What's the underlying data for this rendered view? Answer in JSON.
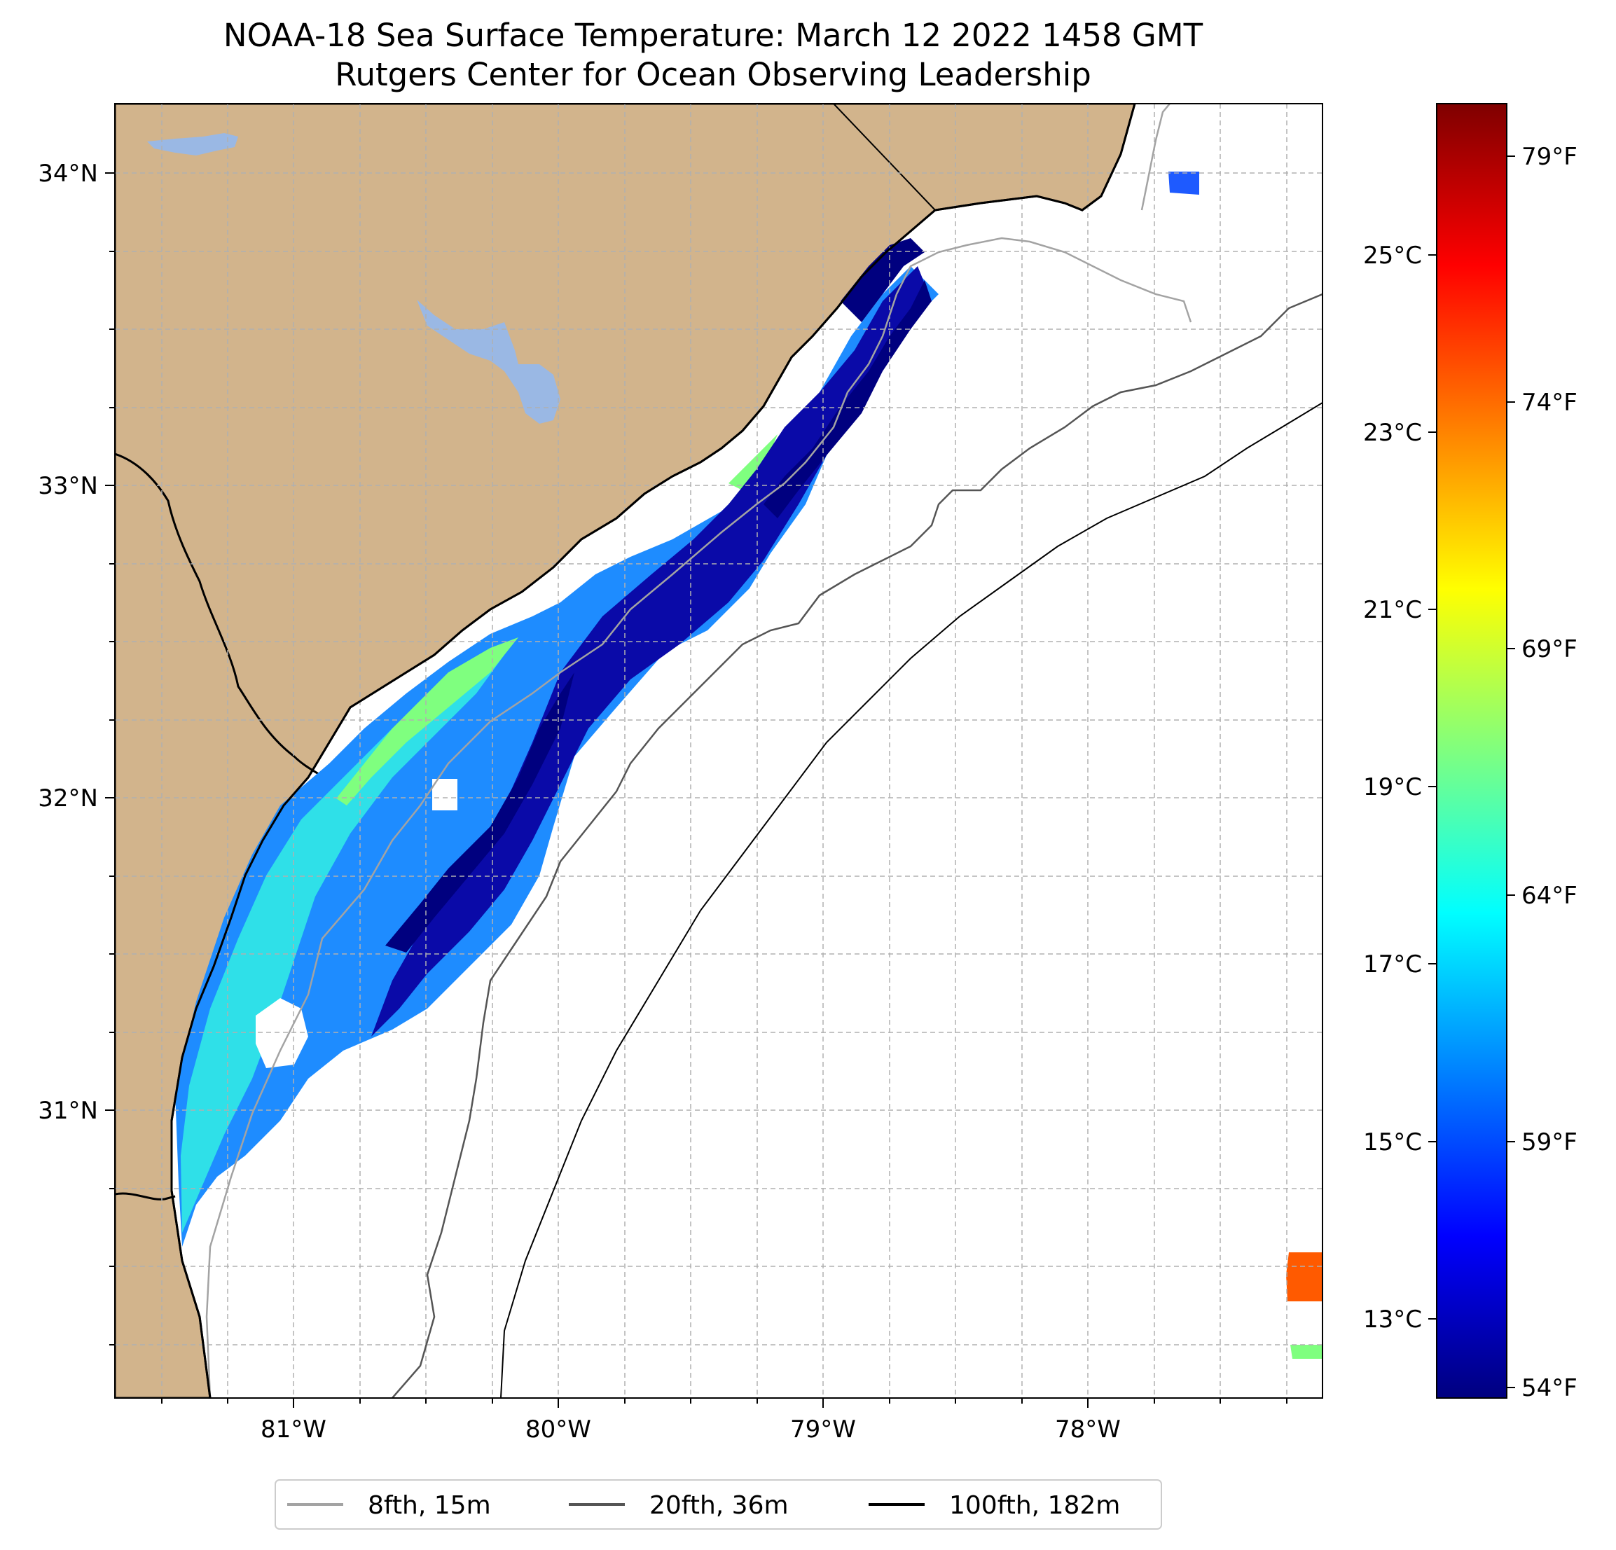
{
  "title": {
    "line1": "NOAA-18 Sea Surface Temperature: March 12 2022 1458 GMT",
    "line2": "Rutgers Center for Ocean Observing Leadership"
  },
  "map": {
    "lon_range": [
      -81.68,
      -77.12
    ],
    "lat_range": [
      30.07,
      34.22
    ],
    "lat_ticks": [
      {
        "value": 34,
        "label": "34°N"
      },
      {
        "value": 33,
        "label": "33°N"
      },
      {
        "value": 32,
        "label": "32°N"
      },
      {
        "value": 31,
        "label": "31°N"
      }
    ],
    "lon_ticks": [
      {
        "value": -81,
        "label": "81°W"
      },
      {
        "value": -80,
        "label": "80°W"
      },
      {
        "value": -79,
        "label": "79°W"
      },
      {
        "value": -78,
        "label": "78°W"
      }
    ],
    "grid": true,
    "land_color": "#d2b48c",
    "lake_color": "#9ab8e4",
    "ocean_color": "#ffffff"
  },
  "colorbar": {
    "colormap": "jet",
    "range_c": [
      12.2,
      27.2
    ],
    "celsius_ticks": [
      {
        "value": 13,
        "label": "13°C"
      },
      {
        "value": 15,
        "label": "15°C"
      },
      {
        "value": 17,
        "label": "17°C"
      },
      {
        "value": 19,
        "label": "19°C"
      },
      {
        "value": 21,
        "label": "21°C"
      },
      {
        "value": 23,
        "label": "23°C"
      },
      {
        "value": 25,
        "label": "25°C"
      }
    ],
    "fahrenheit_ticks": [
      {
        "value": 54,
        "label": "54°F"
      },
      {
        "value": 59,
        "label": "59°F"
      },
      {
        "value": 64,
        "label": "64°F"
      },
      {
        "value": 69,
        "label": "69°F"
      },
      {
        "value": 74,
        "label": "74°F"
      },
      {
        "value": 79,
        "label": "79°F"
      }
    ]
  },
  "legend": {
    "placement": "bottom-center",
    "items": [
      {
        "label": "8fth, 15m",
        "color": "#a3a3a3"
      },
      {
        "label": "20fth, 36m",
        "color": "#555555"
      },
      {
        "label": "100fth, 182m",
        "color": "#000000"
      }
    ]
  }
}
